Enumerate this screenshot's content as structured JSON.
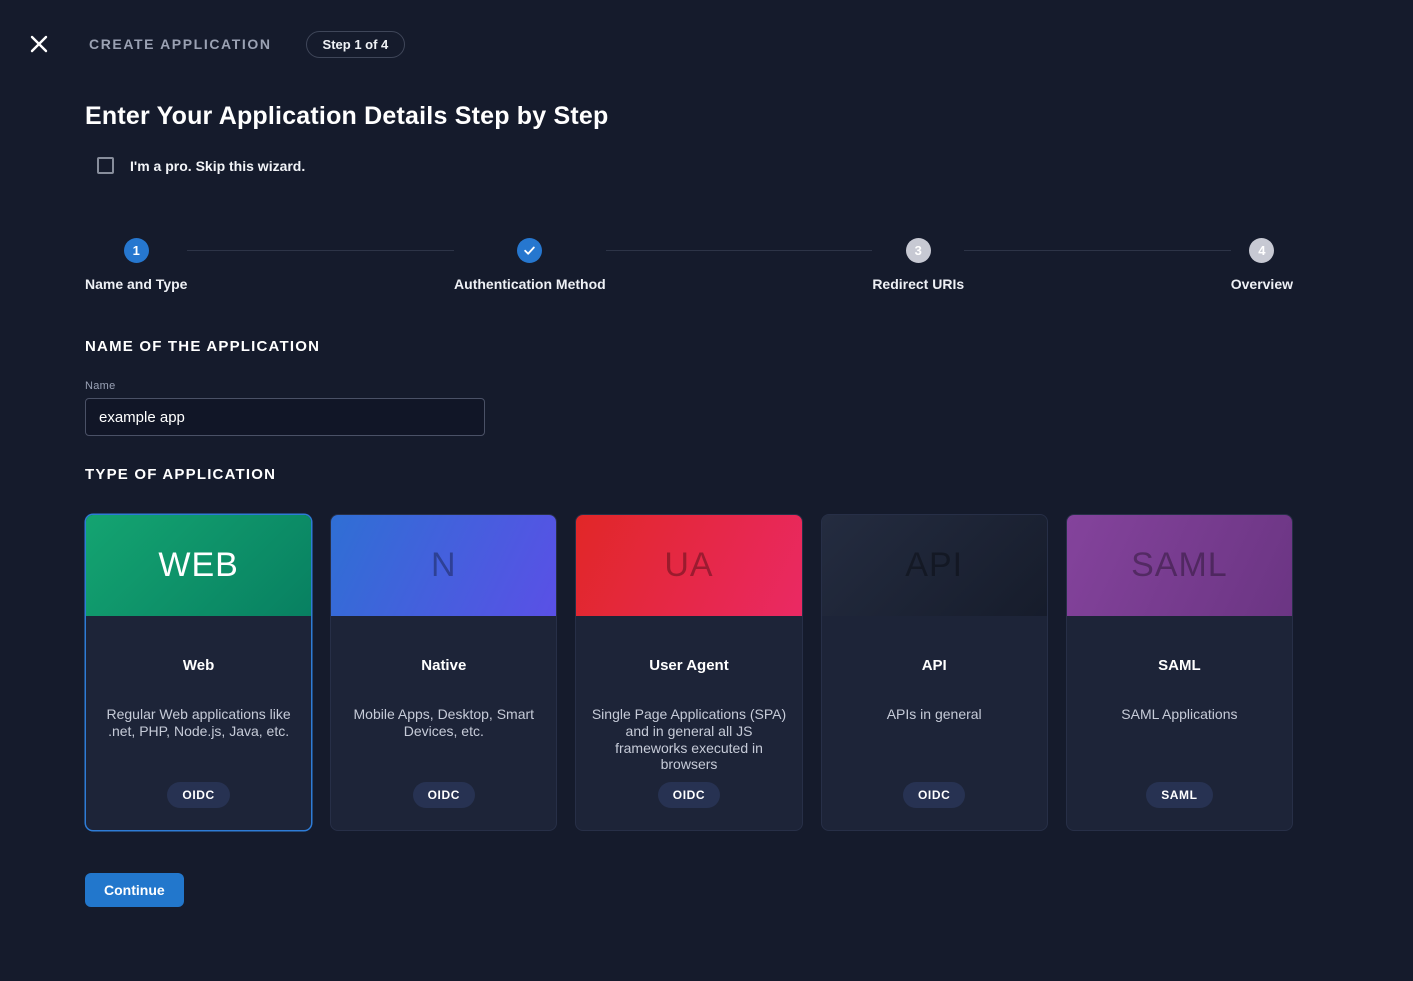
{
  "topbar": {
    "title": "CREATE APPLICATION",
    "step_badge": "Step 1 of 4",
    "close_icon": "x-icon"
  },
  "page": {
    "title": "Enter Your Application Details Step by Step",
    "skip_label": "I'm a pro. Skip this wizard.",
    "skip_checked": false
  },
  "stepper": {
    "steps": [
      {
        "label": "Name and Type",
        "state": "active",
        "number": "1"
      },
      {
        "label": "Authentication Method",
        "state": "done",
        "icon": "check-icon"
      },
      {
        "label": "Redirect URIs",
        "state": "upcoming",
        "number": "3"
      },
      {
        "label": "Overview",
        "state": "upcoming",
        "number": "4"
      }
    ]
  },
  "name_section": {
    "heading": "NAME OF THE APPLICATION",
    "field_label": "Name",
    "value": "example app"
  },
  "type_section": {
    "heading": "TYPE OF APPLICATION",
    "cards": [
      {
        "abbr": "WEB",
        "title": "Web",
        "description": "Regular Web applications like .net, PHP, Node.js, Java, etc.",
        "protocol": "OIDC",
        "selected": true,
        "gradient": "linear-gradient(135deg, #14a471, #088061)"
      },
      {
        "abbr": "N",
        "title": "Native",
        "description": "Mobile Apps, Desktop, Smart Devices, etc.",
        "protocol": "OIDC",
        "selected": false,
        "gradient": "linear-gradient(115deg, #2f6fd4, #5a50e6)"
      },
      {
        "abbr": "UA",
        "title": "User Agent",
        "description": "Single Page Applications (SPA) and in general all JS frameworks executed in browsers",
        "protocol": "OIDC",
        "selected": false,
        "gradient": "linear-gradient(115deg, #e12727, #ea2964)"
      },
      {
        "abbr": "API",
        "title": "API",
        "description": "APIs in general",
        "protocol": "OIDC",
        "selected": false,
        "gradient": "linear-gradient(135deg, #242c40, #161c2b)"
      },
      {
        "abbr": "SAML",
        "title": "SAML",
        "description": "SAML Applications",
        "protocol": "SAML",
        "selected": false,
        "gradient": "linear-gradient(115deg, #84439c, #6b3583)"
      }
    ]
  },
  "actions": {
    "continue_label": "Continue"
  },
  "colors": {
    "background": "#151b2c",
    "card_background": "#1d2438",
    "accent_blue": "#2677cf",
    "selected_border": "#2e7cd6",
    "upcoming_gray": "#c7c9d3"
  }
}
